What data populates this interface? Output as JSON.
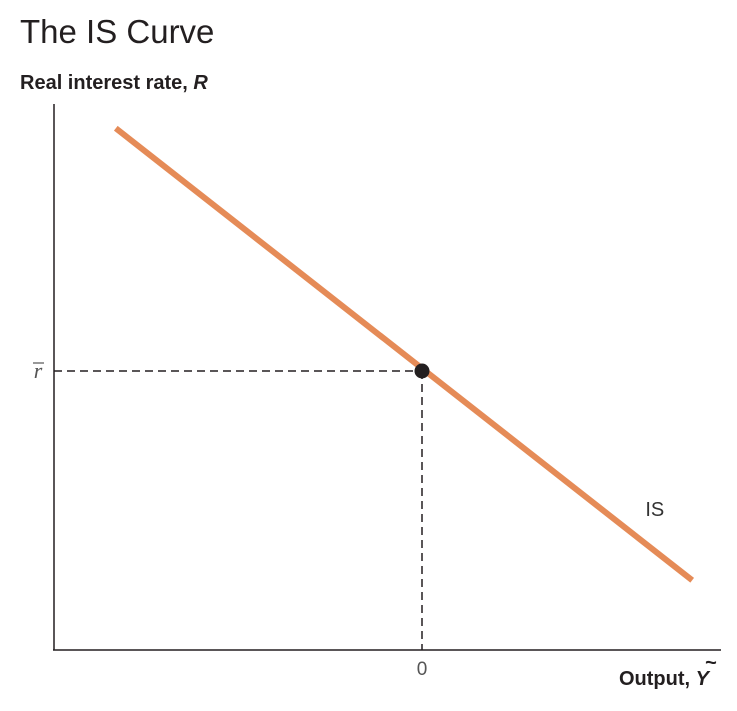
{
  "chart_data": {
    "type": "line",
    "title": "The IS Curve",
    "ylabel": {
      "text": "Real interest rate, ",
      "symbol": "R"
    },
    "xlabel": {
      "text": "Output, ",
      "symbol": "Y",
      "accent": "~"
    },
    "x_ticks": [
      {
        "value": 0,
        "label": "0"
      }
    ],
    "y_ticks": [
      {
        "value": 0,
        "label": "r",
        "overbar": true
      }
    ],
    "xlim": [
      -1.0,
      0.83
    ],
    "ylim": [
      -1.0,
      1.0
    ],
    "grid": false,
    "series": [
      {
        "name": "IS",
        "color": "#e58b57",
        "x": [
          -0.85,
          0.75
        ],
        "y": [
          0.87,
          -0.75
        ]
      }
    ],
    "points": [
      {
        "x": 0,
        "y": 0,
        "color": "#231f20"
      }
    ],
    "guides": [
      {
        "type": "dashed",
        "from": "y-axis",
        "at": {
          "x": 0,
          "y": 0
        }
      },
      {
        "type": "dashed",
        "from": "x-axis",
        "at": {
          "x": 0,
          "y": 0
        }
      }
    ],
    "annotations": [
      {
        "text": "IS",
        "x": 0.62,
        "y": -0.52
      }
    ]
  }
}
